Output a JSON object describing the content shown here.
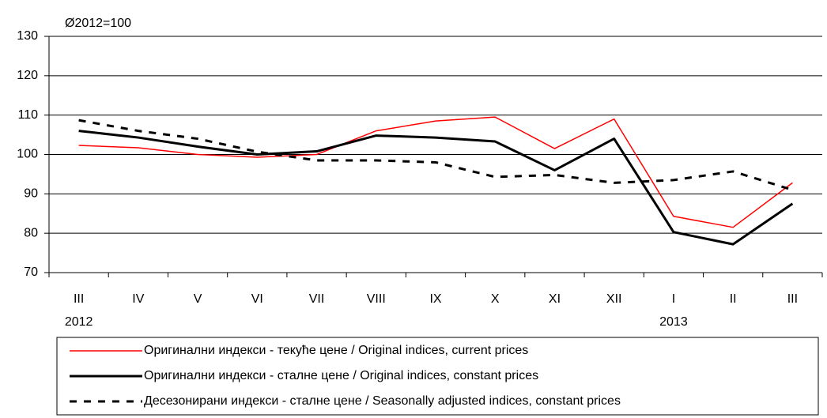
{
  "chart_data": {
    "type": "line",
    "annotation": "Ø2012=100",
    "categories": [
      "III",
      "IV",
      "V",
      "VI",
      "VII",
      "VIII",
      "IX",
      "X",
      "XI",
      "XII",
      "I",
      "II",
      "III"
    ],
    "years": [
      "2012",
      null,
      null,
      null,
      null,
      null,
      null,
      null,
      null,
      null,
      "2013",
      null,
      null
    ],
    "series": [
      {
        "name": "Оригинални индекси - текуће цене / Original indices, current prices",
        "color": "#ff0000",
        "style": "solid",
        "width": 1.5,
        "values": [
          102.3,
          101.7,
          100,
          99.3,
          100,
          106,
          108.5,
          109.5,
          101.5,
          109,
          84.3,
          81.5,
          92.8
        ]
      },
      {
        "name": "Оригинални индекси - сталне цене / Original indices, constant prices",
        "color": "#000000",
        "style": "solid",
        "width": 3,
        "values": [
          106,
          104.3,
          102,
          100,
          100.8,
          104.8,
          104.3,
          103.3,
          96,
          104,
          80.3,
          77.2,
          87.5
        ]
      },
      {
        "name": "Десезонирани индекси - сталне цене / Seasonally adjusted indices, constant prices",
        "color": "#000000",
        "style": "dashed",
        "width": 3,
        "values": [
          108.7,
          106,
          104,
          100.7,
          98.5,
          98.5,
          98,
          94.3,
          94.8,
          92.8,
          93.5,
          95.7,
          91
        ]
      }
    ],
    "ylim": [
      70,
      130
    ],
    "yticks": [
      70,
      80,
      90,
      100,
      110,
      120,
      130
    ],
    "grid": true,
    "legend": "bottom"
  }
}
